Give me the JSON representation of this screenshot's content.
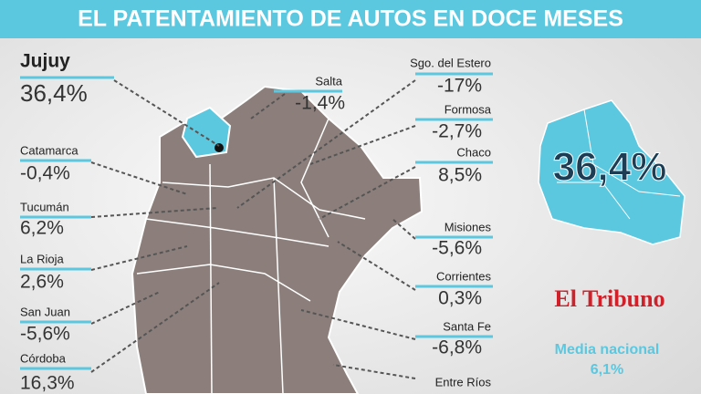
{
  "title": "EL  PATENTAMIENTO DE AUTOS EN DOCE MESES",
  "provinces": [
    {
      "name": "Jujuy",
      "value": "36,4%"
    },
    {
      "name": "Catamarca",
      "value": "-0,4%"
    },
    {
      "name": "Tucumán",
      "value": "6,2%"
    },
    {
      "name": "La Rioja",
      "value": "2,6%"
    },
    {
      "name": "San Juan",
      "value": "-5,6%"
    },
    {
      "name": "Córdoba",
      "value": "16,3%"
    },
    {
      "name": "Salta",
      "value": "-1,4%"
    },
    {
      "name": "Sgo. del Estero",
      "value": "-17%"
    },
    {
      "name": "Formosa",
      "value": "-2,7%"
    },
    {
      "name": "Chaco",
      "value": "8,5%"
    },
    {
      "name": "Misiones",
      "value": "-5,6%"
    },
    {
      "name": "Corrientes",
      "value": "0,3%"
    },
    {
      "name": "Santa Fe",
      "value": "-6,8%"
    },
    {
      "name": "Entre Ríos"
    }
  ],
  "highlight": "36,4%",
  "logo": "El Tribuno",
  "national": {
    "label": "Media nacional",
    "value": "6,1%"
  }
}
